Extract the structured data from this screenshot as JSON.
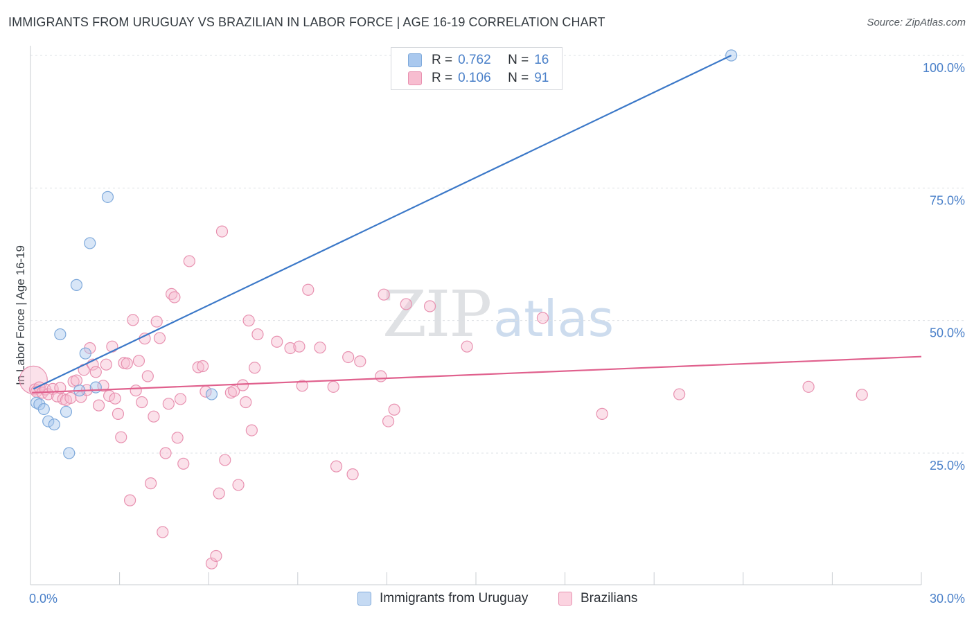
{
  "title": "IMMIGRANTS FROM URUGUAY VS BRAZILIAN IN LABOR FORCE | AGE 16-19 CORRELATION CHART",
  "source": "Source: ZipAtlas.com",
  "watermark": {
    "zip": "ZIP",
    "atlas": "atlas"
  },
  "legend": {
    "r_label": "R =",
    "n_label": "N =",
    "series": [
      {
        "r": "0.762",
        "n": "16",
        "color": "#a9c8ee",
        "border": "#7ea9db"
      },
      {
        "r": "0.106",
        "n": "91",
        "color": "#f7bdd0",
        "border": "#e891b0"
      }
    ]
  },
  "bottom_legend": [
    {
      "label": "Immigrants from Uruguay",
      "color": "#c5daf3",
      "border": "#7ea9db"
    },
    {
      "label": "Brazilians",
      "color": "#fbd3e0",
      "border": "#e891b0"
    }
  ],
  "chart_data": {
    "type": "scatter",
    "title": "IMMIGRANTS FROM URUGUAY VS BRAZILIAN IN LABOR FORCE | AGE 16-19 CORRELATION CHART",
    "xlabel": "",
    "ylabel": "In Labor Force | Age 16-19",
    "xlim": [
      0,
      30
    ],
    "ylim": [
      0,
      102
    ],
    "x_tick_labels": [
      {
        "value": 0,
        "label": "0.0%"
      },
      {
        "value": 30,
        "label": "30.0%"
      }
    ],
    "y_tick_labels": [
      {
        "value": 25,
        "label": "25.0%"
      },
      {
        "value": 50,
        "label": "50.0%"
      },
      {
        "value": 75,
        "label": "75.0%"
      },
      {
        "value": 100,
        "label": "100.0%"
      }
    ],
    "grid": "horizontal dashed",
    "legend_position": "top-center",
    "series": [
      {
        "name": "Immigrants from Uruguay",
        "color": "#7ea9db",
        "line_color": "#3b78c8",
        "points": [
          [
            0.2,
            34.5
          ],
          [
            0.3,
            34.2
          ],
          [
            0.45,
            33.3
          ],
          [
            0.6,
            31.0
          ],
          [
            0.8,
            30.4
          ],
          [
            1.0,
            47.4
          ],
          [
            1.2,
            32.8
          ],
          [
            1.3,
            25.0
          ],
          [
            1.55,
            56.7
          ],
          [
            1.65,
            36.8
          ],
          [
            1.85,
            43.8
          ],
          [
            2.0,
            64.6
          ],
          [
            2.2,
            37.4
          ],
          [
            2.6,
            73.3
          ],
          [
            6.1,
            36.1
          ],
          [
            23.6,
            100.0
          ]
        ],
        "trend": [
          [
            0.1,
            37.1
          ],
          [
            23.6,
            100.0
          ]
        ]
      },
      {
        "name": "Brazilians",
        "color": "#e891b0",
        "line_color": "#e0608d",
        "points": [
          [
            0.1,
            38.8
          ],
          [
            0.15,
            37.0
          ],
          [
            0.2,
            36.6
          ],
          [
            0.3,
            37.4
          ],
          [
            0.4,
            36.4
          ],
          [
            0.5,
            37.0
          ],
          [
            0.6,
            36.1
          ],
          [
            0.75,
            37.1
          ],
          [
            0.9,
            35.7
          ],
          [
            1.0,
            37.3
          ],
          [
            1.1,
            35.2
          ],
          [
            1.2,
            35.0
          ],
          [
            1.35,
            35.4
          ],
          [
            1.45,
            38.5
          ],
          [
            1.55,
            38.7
          ],
          [
            1.7,
            35.6
          ],
          [
            1.8,
            40.7
          ],
          [
            1.9,
            36.9
          ],
          [
            2.0,
            44.8
          ],
          [
            2.1,
            41.7
          ],
          [
            2.2,
            40.3
          ],
          [
            2.3,
            34.0
          ],
          [
            2.45,
            37.7
          ],
          [
            2.55,
            41.7
          ],
          [
            2.65,
            35.8
          ],
          [
            2.75,
            45.1
          ],
          [
            2.85,
            35.3
          ],
          [
            2.95,
            32.4
          ],
          [
            3.05,
            28.0
          ],
          [
            3.15,
            42.0
          ],
          [
            3.25,
            41.9
          ],
          [
            3.35,
            16.1
          ],
          [
            3.45,
            50.1
          ],
          [
            3.55,
            36.8
          ],
          [
            3.65,
            42.4
          ],
          [
            3.75,
            34.6
          ],
          [
            3.85,
            46.6
          ],
          [
            3.95,
            39.5
          ],
          [
            4.05,
            19.3
          ],
          [
            4.15,
            31.9
          ],
          [
            4.25,
            49.8
          ],
          [
            4.35,
            46.7
          ],
          [
            4.45,
            10.1
          ],
          [
            4.55,
            25.0
          ],
          [
            4.65,
            34.3
          ],
          [
            4.75,
            55.0
          ],
          [
            4.85,
            54.4
          ],
          [
            4.95,
            27.9
          ],
          [
            5.05,
            35.2
          ],
          [
            5.15,
            23.0
          ],
          [
            5.35,
            61.2
          ],
          [
            5.65,
            41.2
          ],
          [
            5.8,
            41.4
          ],
          [
            5.9,
            36.6
          ],
          [
            6.1,
            4.2
          ],
          [
            6.25,
            5.6
          ],
          [
            6.35,
            17.4
          ],
          [
            6.45,
            66.8
          ],
          [
            6.55,
            23.7
          ],
          [
            6.75,
            36.4
          ],
          [
            6.85,
            36.7
          ],
          [
            7.0,
            19.0
          ],
          [
            7.15,
            37.8
          ],
          [
            7.25,
            34.6
          ],
          [
            7.35,
            50.0
          ],
          [
            7.45,
            29.3
          ],
          [
            7.55,
            41.1
          ],
          [
            7.65,
            47.4
          ],
          [
            8.3,
            46.0
          ],
          [
            8.75,
            44.8
          ],
          [
            9.05,
            45.1
          ],
          [
            9.15,
            37.7
          ],
          [
            9.35,
            55.8
          ],
          [
            9.75,
            44.9
          ],
          [
            10.2,
            37.5
          ],
          [
            10.3,
            22.5
          ],
          [
            10.7,
            43.1
          ],
          [
            10.85,
            21.0
          ],
          [
            11.1,
            42.3
          ],
          [
            11.8,
            39.5
          ],
          [
            11.9,
            54.9
          ],
          [
            12.05,
            31.0
          ],
          [
            12.25,
            33.2
          ],
          [
            12.65,
            53.1
          ],
          [
            13.45,
            52.7
          ],
          [
            14.7,
            45.1
          ],
          [
            17.25,
            50.5
          ],
          [
            19.25,
            32.4
          ],
          [
            21.85,
            36.1
          ],
          [
            26.2,
            37.5
          ],
          [
            28.0,
            36.0
          ]
        ],
        "trend": [
          [
            0.05,
            36.4
          ],
          [
            30.0,
            43.2
          ]
        ]
      }
    ]
  }
}
